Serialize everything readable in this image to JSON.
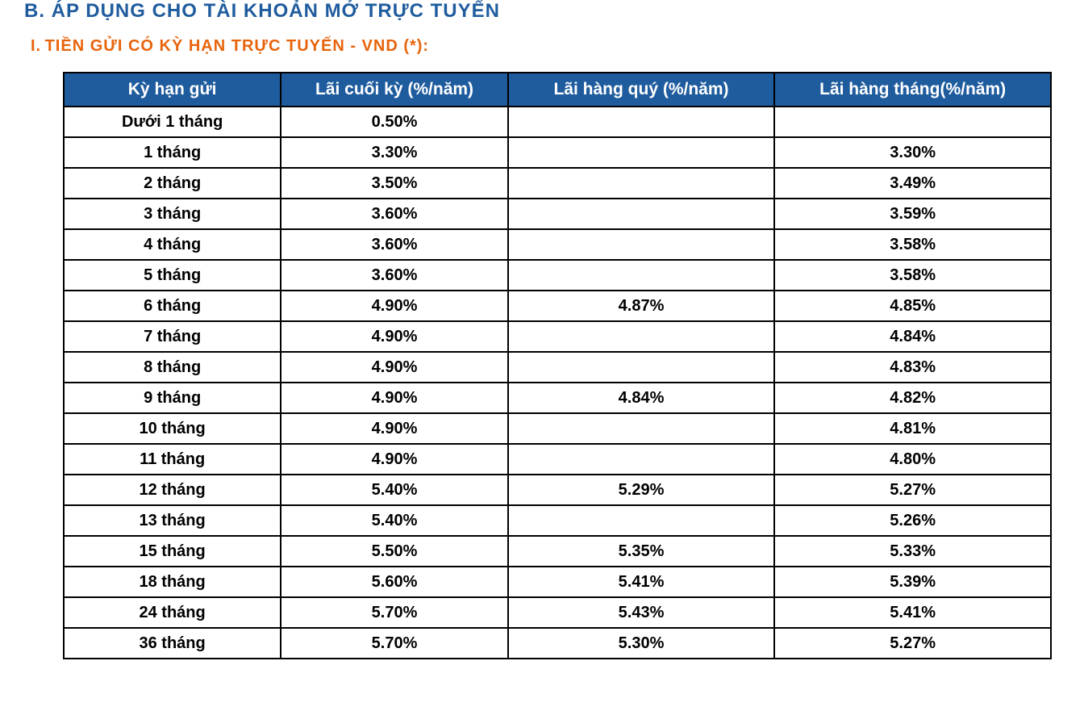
{
  "heading_b": "B. ÁP DỤNG CHO TÀI KHOẢN MỞ TRỰC TUYẾN",
  "heading_i_prefix": "I.",
  "heading_i": "TIỀN GỬI CÓ KỲ HẠN TRỰC TUYẾN - VND (*):",
  "table": {
    "header_bg_color": "#1f5c9e",
    "header_text_color": "#ffffff",
    "border_color": "#000000",
    "cell_bg_color": "#ffffff",
    "cell_text_color": "#000000",
    "header_fontsize": 21,
    "cell_fontsize": 20,
    "columns": [
      "Kỳ hạn gửi",
      "Lãi cuối kỳ (%/năm)",
      "Lãi hàng quý (%/năm)",
      "Lãi hàng tháng(%/năm)"
    ],
    "column_widths": [
      "22%",
      "23%",
      "27%",
      "28%"
    ],
    "rows": [
      {
        "term": "Dưới 1 tháng",
        "end": "0.50%",
        "quarterly": "",
        "monthly": ""
      },
      {
        "term": "1 tháng",
        "end": "3.30%",
        "quarterly": "",
        "monthly": "3.30%"
      },
      {
        "term": "2 tháng",
        "end": "3.50%",
        "quarterly": "",
        "monthly": "3.49%"
      },
      {
        "term": "3 tháng",
        "end": "3.60%",
        "quarterly": "",
        "monthly": "3.59%"
      },
      {
        "term": "4 tháng",
        "end": "3.60%",
        "quarterly": "",
        "monthly": "3.58%"
      },
      {
        "term": "5 tháng",
        "end": "3.60%",
        "quarterly": "",
        "monthly": "3.58%"
      },
      {
        "term": "6 tháng",
        "end": "4.90%",
        "quarterly": "4.87%",
        "monthly": "4.85%"
      },
      {
        "term": "7 tháng",
        "end": "4.90%",
        "quarterly": "",
        "monthly": "4.84%"
      },
      {
        "term": "8 tháng",
        "end": "4.90%",
        "quarterly": "",
        "monthly": "4.83%"
      },
      {
        "term": "9 tháng",
        "end": "4.90%",
        "quarterly": "4.84%",
        "monthly": "4.82%"
      },
      {
        "term": "10 tháng",
        "end": "4.90%",
        "quarterly": "",
        "monthly": "4.81%"
      },
      {
        "term": "11 tháng",
        "end": "4.90%",
        "quarterly": "",
        "monthly": "4.80%"
      },
      {
        "term": "12 tháng",
        "end": "5.40%",
        "quarterly": "5.29%",
        "monthly": "5.27%"
      },
      {
        "term": "13 tháng",
        "end": "5.40%",
        "quarterly": "",
        "monthly": "5.26%"
      },
      {
        "term": "15 tháng",
        "end": "5.50%",
        "quarterly": "5.35%",
        "monthly": "5.33%"
      },
      {
        "term": "18 tháng",
        "end": "5.60%",
        "quarterly": "5.41%",
        "monthly": "5.39%"
      },
      {
        "term": "24 tháng",
        "end": "5.70%",
        "quarterly": "5.43%",
        "monthly": "5.41%"
      },
      {
        "term": "36 tháng",
        "end": "5.70%",
        "quarterly": "5.30%",
        "monthly": "5.27%"
      }
    ]
  },
  "colors": {
    "heading_b_color": "#1f5c9e",
    "heading_i_color": "#e8640c",
    "background": "#ffffff"
  }
}
